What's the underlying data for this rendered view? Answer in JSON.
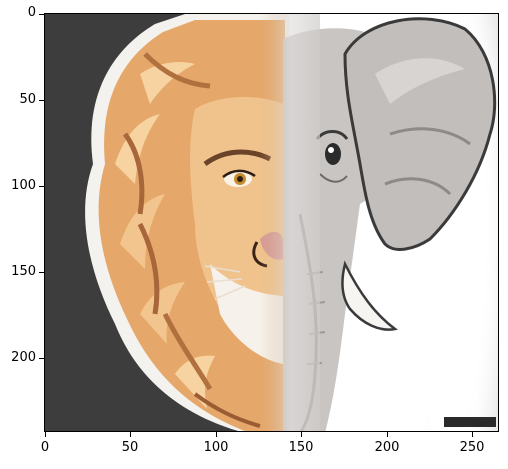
{
  "image": {
    "subject": "lion-elephant-split-face-illustration"
  },
  "axes": {
    "x_ticks": [
      "0",
      "50",
      "100",
      "150",
      "200",
      "250"
    ],
    "y_ticks": [
      "0",
      "50",
      "100",
      "150",
      "200"
    ]
  },
  "colors": {
    "background_left": "#3d3d3d",
    "background_right": "#ffffff",
    "mane_light": "#f0c48a",
    "mane_dark": "#c07a45",
    "elephant_skin": "#c8c4c2",
    "outline": "#2b2b2b"
  }
}
